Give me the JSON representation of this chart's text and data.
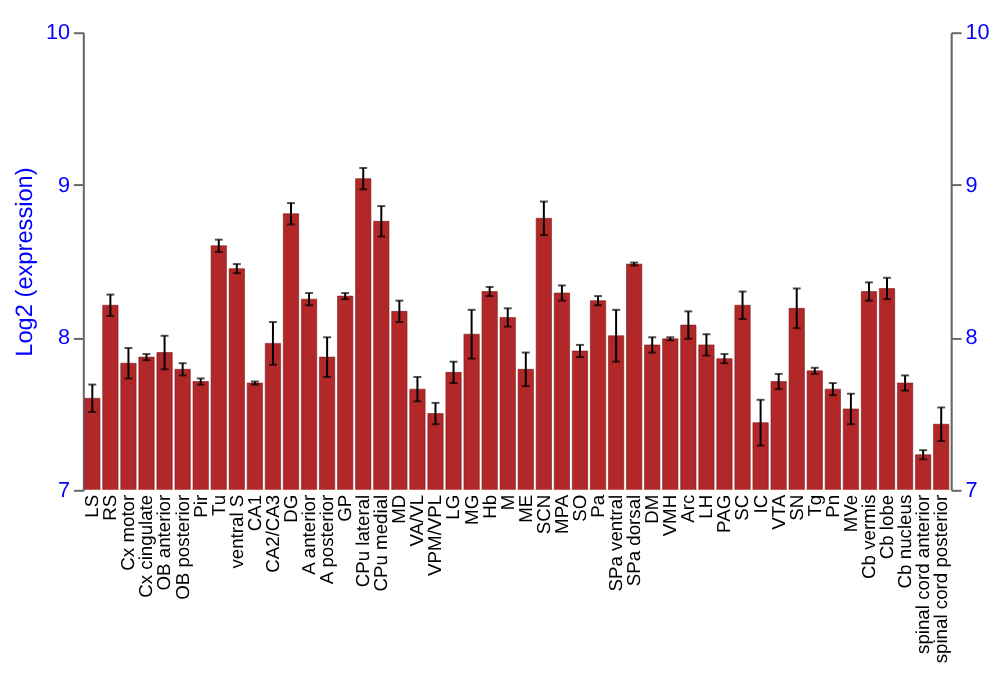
{
  "chart_data": {
    "type": "bar",
    "ylabel": "Log2 (expression)",
    "categories": [
      "LS",
      "RS",
      "Cx motor",
      "Cx cingulate",
      "OB anterior",
      "OB posterior",
      "Pir",
      "Tu",
      "ventral S",
      "CA1",
      "CA2/CA3",
      "DG",
      "A anterior",
      "A posterior",
      "GP",
      "CPu lateral",
      "CPu medial",
      "MD",
      "VA/VL",
      "VPM/VPL",
      "LG",
      "MG",
      "Hb",
      "M",
      "ME",
      "SCN",
      "MPA",
      "SO",
      "Pa",
      "SPa ventral",
      "SPa dorsal",
      "DM",
      "VMH",
      "Arc",
      "LH",
      "PAG",
      "SC",
      "IC",
      "VTA",
      "SN",
      "Tg",
      "Pn",
      "MVe",
      "Cb vermis",
      "Cb lobe",
      "Cb nucleus",
      "spinal cord anterior",
      "spinal cord posterior"
    ],
    "values": [
      7.6,
      8.21,
      7.83,
      7.87,
      7.9,
      7.79,
      7.71,
      8.6,
      8.45,
      7.7,
      7.96,
      8.81,
      8.25,
      7.87,
      8.27,
      9.04,
      8.76,
      8.17,
      7.66,
      7.5,
      7.77,
      8.02,
      8.3,
      8.13,
      7.79,
      8.78,
      8.29,
      7.91,
      8.24,
      8.01,
      8.48,
      7.95,
      7.99,
      8.08,
      7.95,
      7.86,
      8.21,
      7.44,
      7.71,
      8.19,
      7.78,
      7.66,
      7.53,
      8.3,
      8.32,
      7.7,
      7.23,
      7.43
    ],
    "errors": [
      0.09,
      0.07,
      0.1,
      0.02,
      0.11,
      0.04,
      0.02,
      0.04,
      0.03,
      0.01,
      0.14,
      0.07,
      0.04,
      0.13,
      0.02,
      0.07,
      0.1,
      0.07,
      0.08,
      0.07,
      0.07,
      0.16,
      0.03,
      0.06,
      0.11,
      0.11,
      0.05,
      0.04,
      0.03,
      0.17,
      0.01,
      0.05,
      0.01,
      0.09,
      0.07,
      0.03,
      0.09,
      0.15,
      0.05,
      0.13,
      0.02,
      0.04,
      0.1,
      0.06,
      0.07,
      0.05,
      0.03,
      0.11
    ],
    "color": "#b22828",
    "ylim": [
      7,
      10
    ],
    "yticks": [
      7,
      8,
      9,
      10
    ],
    "y2lim": [
      7,
      10
    ],
    "y2ticks": [
      7,
      8,
      9,
      10
    ],
    "grid": "y"
  }
}
